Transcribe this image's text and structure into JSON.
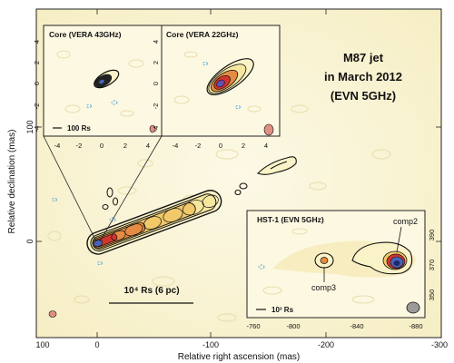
{
  "main": {
    "title_lines": [
      "M87 jet",
      "in March 2012",
      "(EVN 5GHz)"
    ],
    "x_axis": {
      "label": "Relative right ascension (mas)",
      "ticks": [
        "100",
        "0",
        "-100",
        "-200",
        "-300"
      ]
    },
    "y_axis": {
      "label": "Relative declination (mas)",
      "ticks": [
        "100",
        "0"
      ]
    },
    "scale_bar_label": "10⁴ Rs (6 pc)"
  },
  "inset_43": {
    "title": "Core (VERA 43GHz)",
    "x_ticks": [
      "-4",
      "-2",
      "0",
      "2",
      "4"
    ],
    "y_ticks": [
      "4",
      "2",
      "0",
      "-2",
      "-4"
    ],
    "scale_label": "100 Rs"
  },
  "inset_22": {
    "title": "Core (VERA 22GHz)",
    "x_ticks": [
      "-4",
      "-2",
      "0",
      "2",
      "4"
    ],
    "y_ticks": [
      "4",
      "2",
      "0",
      "-2",
      "-4"
    ]
  },
  "inset_hst": {
    "title": "HST-1 (EVN 5GHz)",
    "x_ticks": [
      "-760",
      "-800",
      "-840",
      "-880"
    ],
    "y_ticks": [
      "390",
      "370",
      "350"
    ],
    "scale_label": "10³ Rs",
    "labels": {
      "comp2": "comp2",
      "comp3": "comp3"
    }
  },
  "colors": {
    "background": "#fbf7dd",
    "contour": "#111111",
    "core_blue": "#4a63b8",
    "core_red": "#d2352e",
    "beam": "#e08f85",
    "beam_gray": "#9a9a9a"
  }
}
